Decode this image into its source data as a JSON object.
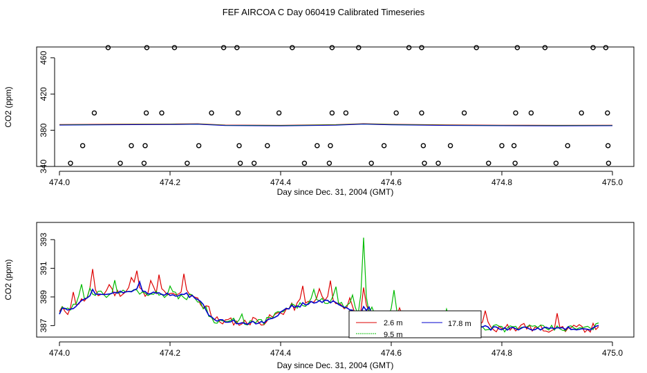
{
  "title": "FEF AIRCOA C  Day 060419  Calibrated Timeseries",
  "colors": {
    "red": "#dd0000",
    "green": "#00bb00",
    "blue": "#0000cc",
    "axis": "#000000"
  },
  "chart_data": [
    {
      "type": "scatter",
      "panel": "top",
      "xlabel": "Day since Dec. 31, 2004 (GMT)",
      "ylabel": "CO2 (ppm)",
      "xlim": [
        474.0,
        475.0
      ],
      "ylim": [
        340,
        472
      ],
      "xticks": [
        474.0,
        474.2,
        474.4,
        474.6,
        474.8,
        475.0
      ],
      "xtick_labels": [
        "474.0",
        "474.2",
        "474.4",
        "474.6",
        "474.8",
        "475.0"
      ],
      "yticks": [
        340,
        380,
        420,
        460
      ],
      "ytick_labels": [
        "340",
        "380",
        "420",
        "460"
      ],
      "scatter_x": [
        474.088,
        474.158,
        474.208,
        474.297,
        474.321,
        474.421,
        474.493,
        474.541,
        474.632,
        474.655,
        474.754,
        474.828,
        474.878,
        474.965,
        474.988,
        474.063,
        474.157,
        474.185,
        474.275,
        474.323,
        474.397,
        474.493,
        474.518,
        474.609,
        474.655,
        474.732,
        474.825,
        474.853,
        474.944,
        474.991,
        474.042,
        474.13,
        474.155,
        474.252,
        474.325,
        474.376,
        474.466,
        474.49,
        474.587,
        474.658,
        474.707,
        474.8,
        474.822,
        474.919,
        474.992,
        474.02,
        474.11,
        474.153,
        474.231,
        474.327,
        474.352,
        474.443,
        474.488,
        474.564,
        474.66,
        474.685,
        474.776,
        474.824,
        474.898,
        474.993
      ],
      "scatter_y": [
        471.3,
        471.3,
        471.3,
        471.3,
        471.3,
        471.3,
        471.3,
        471.3,
        471.3,
        471.3,
        471.3,
        471.3,
        471.3,
        471.3,
        471.3,
        399.1,
        399.1,
        399.1,
        399.1,
        399.1,
        399.1,
        399.1,
        399.1,
        399.1,
        399.1,
        399.1,
        399.1,
        399.1,
        399.1,
        399.1,
        363.0,
        363.0,
        363.0,
        363.0,
        363.0,
        363.0,
        363.0,
        363.0,
        363.0,
        363.0,
        363.0,
        363.0,
        363.0,
        363.0,
        363.0,
        343.6,
        343.6,
        343.6,
        343.6,
        343.6,
        343.6,
        343.6,
        343.6,
        343.6,
        343.6,
        343.6,
        343.6,
        343.6,
        343.6,
        343.6
      ],
      "line_x": [
        474.0,
        474.1,
        474.2,
        474.25,
        474.3,
        474.4,
        474.5,
        474.55,
        474.6,
        474.7,
        474.8,
        474.9,
        475.0
      ],
      "line_y": [
        386.0,
        386.4,
        386.6,
        386.9,
        385.5,
        385.2,
        385.9,
        387.0,
        386.3,
        385.6,
        385.3,
        385.2,
        385.3
      ]
    },
    {
      "type": "line",
      "panel": "bottom",
      "xlabel": "Day since Dec. 31, 2004 (GMT)",
      "ylabel": "CO2 (ppm)",
      "xlim": [
        474.0,
        475.0
      ],
      "ylim": [
        386.2,
        394.2
      ],
      "xticks": [
        474.0,
        474.2,
        474.4,
        474.6,
        474.8,
        475.0
      ],
      "xtick_labels": [
        "474.0",
        "474.2",
        "474.4",
        "474.6",
        "474.8",
        "475.0"
      ],
      "yticks": [
        387,
        389,
        391,
        393
      ],
      "ytick_labels": [
        "387",
        "389",
        "391",
        "393"
      ],
      "x_start": 474.0,
      "x_step": 0.005,
      "baseline": [
        387.9,
        388.1,
        388.1,
        388.0,
        388.2,
        388.3,
        388.4,
        388.6,
        388.7,
        388.8,
        388.9,
        389.0,
        389.1,
        389.1,
        389.2,
        389.2,
        389.2,
        389.2,
        389.2,
        389.2,
        389.3,
        389.3,
        389.3,
        389.3,
        389.4,
        389.4,
        389.4,
        389.4,
        389.4,
        389.4,
        389.3,
        389.3,
        389.3,
        389.3,
        389.3,
        389.2,
        389.2,
        389.2,
        389.2,
        389.2,
        389.1,
        389.1,
        389.1,
        389.1,
        389.1,
        389.0,
        389.0,
        389.0,
        389.0,
        389.0,
        388.8,
        388.6,
        388.4,
        388.2,
        387.8,
        387.5,
        387.4,
        387.4,
        387.3,
        387.3,
        387.3,
        387.3,
        387.3,
        387.3,
        387.2,
        387.2,
        387.2,
        387.2,
        387.2,
        387.2,
        387.2,
        387.2,
        387.2,
        387.3,
        387.3,
        387.4,
        387.5,
        387.6,
        387.7,
        387.8,
        387.9,
        388.0,
        388.1,
        388.2,
        388.3,
        388.3,
        388.4,
        388.4,
        388.5,
        388.5,
        388.5,
        388.6,
        388.6,
        388.6,
        388.7,
        388.7,
        388.7,
        388.7,
        388.7,
        388.7,
        388.6,
        388.5,
        388.4,
        388.3,
        388.2,
        388.1,
        388.0,
        387.9,
        387.9,
        387.8,
        387.8,
        387.8,
        387.8,
        387.7,
        387.7,
        387.7,
        387.7,
        387.6,
        387.6,
        387.6,
        387.6,
        387.5,
        387.5,
        387.5,
        387.5,
        387.5,
        387.4,
        387.4,
        387.4,
        387.3,
        387.3,
        387.3,
        387.3,
        387.3,
        387.3,
        387.2,
        387.2,
        387.2,
        387.2,
        387.2,
        387.2,
        387.1,
        387.1,
        387.1,
        387.0,
        387.0,
        387.0,
        387.0,
        387.0,
        386.9,
        386.9,
        386.9,
        386.9,
        386.9,
        386.9,
        386.8,
        386.8,
        386.8,
        386.8,
        386.8,
        386.8,
        386.8,
        386.8,
        386.8,
        386.8,
        386.8,
        386.8,
        386.8,
        386.8,
        386.8,
        386.8,
        386.8,
        386.8,
        386.8,
        386.8,
        386.8,
        386.8,
        386.8,
        386.8,
        386.8,
        386.8,
        386.8,
        386.8,
        386.8,
        386.8,
        386.8,
        386.8,
        386.8,
        386.8,
        386.8,
        386.8,
        386.8,
        386.8,
        386.9,
        386.9,
        387.0
      ],
      "series": [
        {
          "name": "2.6 m",
          "color": "#dd0000",
          "noise": 0.28,
          "seed": 11,
          "spikes": [
            [
              474.025,
              0.9
            ],
            [
              474.06,
              1.6
            ],
            [
              474.09,
              0.8
            ],
            [
              474.13,
              0.9
            ],
            [
              474.14,
              1.3
            ],
            [
              474.165,
              0.9
            ],
            [
              474.18,
              1.2
            ],
            [
              474.225,
              1.4
            ],
            [
              474.27,
              0.7
            ],
            [
              474.35,
              0.4
            ],
            [
              474.44,
              1.2
            ],
            [
              474.47,
              0.9
            ],
            [
              474.49,
              1.2
            ],
            [
              474.525,
              0.9
            ],
            [
              474.55,
              1.6
            ],
            [
              474.59,
              0.6
            ],
            [
              474.615,
              0.5
            ],
            [
              474.67,
              0.5
            ],
            [
              474.705,
              0.4
            ],
            [
              474.77,
              1.3
            ],
            [
              474.81,
              0.5
            ],
            [
              474.84,
              0.4
            ],
            [
              474.9,
              0.8
            ],
            [
              474.98,
              0.3
            ]
          ]
        },
        {
          "name": "9.5 m",
          "color": "#00bb00",
          "noise": 0.24,
          "seed": 29,
          "spikes": [
            [
              474.04,
              1.3
            ],
            [
              474.055,
              0.8
            ],
            [
              474.1,
              0.7
            ],
            [
              474.2,
              0.6
            ],
            [
              474.33,
              0.4
            ],
            [
              474.46,
              0.7
            ],
            [
              474.5,
              0.9
            ],
            [
              474.53,
              1.0
            ],
            [
              474.55,
              5.2
            ],
            [
              474.565,
              0.6
            ],
            [
              474.605,
              1.8
            ],
            [
              474.645,
              0.5
            ],
            [
              474.7,
              1.0
            ],
            [
              474.79,
              0.5
            ],
            [
              474.85,
              0.4
            ]
          ]
        },
        {
          "name": "17.8 m",
          "color": "#0000cc",
          "noise": 0.12,
          "seed": 47,
          "spikes": [
            [
              474.06,
              0.4
            ],
            [
              474.145,
              0.6
            ],
            [
              474.23,
              0.3
            ],
            [
              474.55,
              0.5
            ],
            [
              474.56,
              0.4
            ]
          ]
        }
      ],
      "legend": {
        "position": "bottom-center",
        "entries": [
          "2.6 m",
          "9.5 m",
          "17.8 m"
        ]
      }
    }
  ]
}
